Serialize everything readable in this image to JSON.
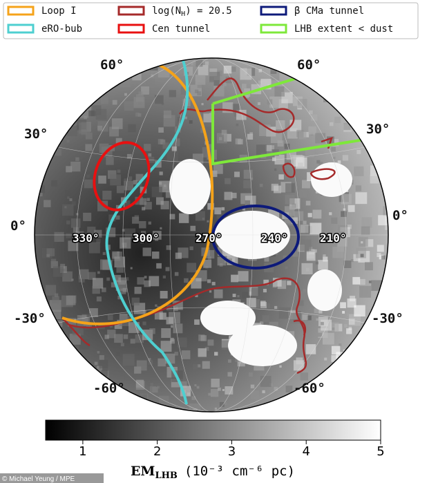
{
  "legend": [
    {
      "label": "Loop I",
      "color": "#f5a31a"
    },
    {
      "label": {
        "pre": "log(N",
        "sub": "H",
        "post": ") = 20.5"
      },
      "color": "#a52a2a"
    },
    {
      "label": "β CMa tunnel",
      "color": "#0d1a7a"
    },
    {
      "label": "eRO-bub",
      "color": "#4ecfd0"
    },
    {
      "label": "Cen tunnel",
      "color": "#e81010"
    },
    {
      "label": "LHB extent < dust",
      "color": "#7ee83a"
    }
  ],
  "latitude_labels": [
    "60°",
    "30°",
    "0°",
    "-30°",
    "-60°"
  ],
  "longitude_labels": [
    "330°",
    "300°",
    "270°",
    "240°",
    "210°"
  ],
  "colorbar": {
    "lim": [
      0.5,
      5
    ],
    "ticks": [
      1,
      2,
      3,
      4,
      5
    ],
    "label": {
      "main": "EM",
      "sub": "LHB",
      "unit": "(10⁻³ cm⁻⁶ pc)"
    }
  },
  "credit": "© Michael Yeung / MPE"
}
